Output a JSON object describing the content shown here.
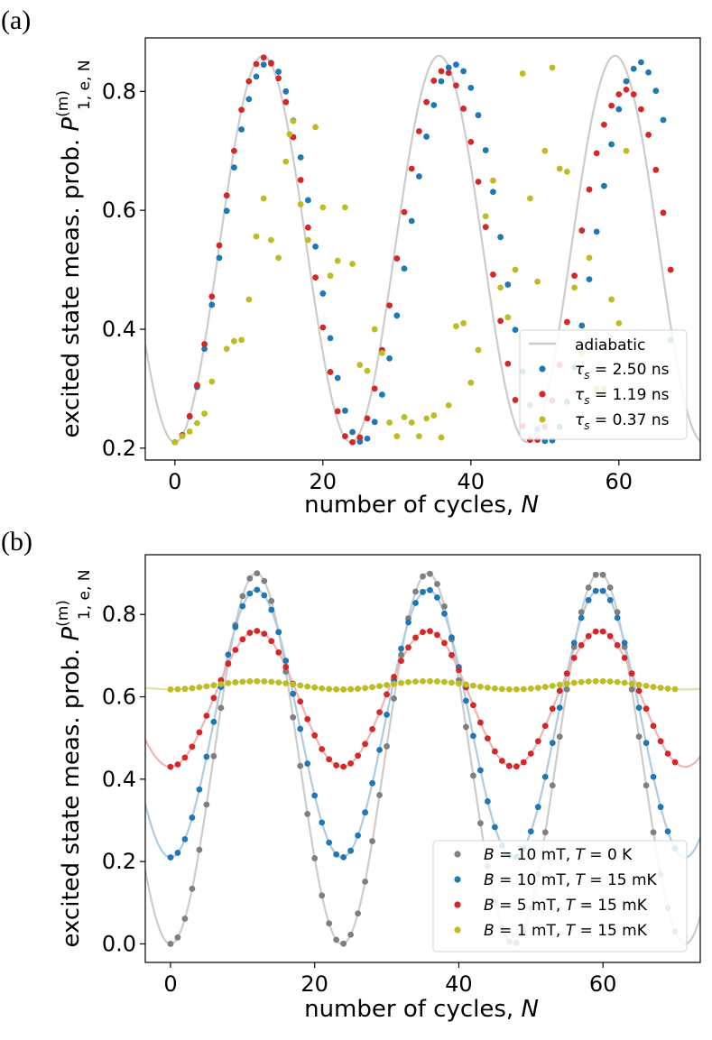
{
  "chart_data": [
    {
      "panel_label": "(a)",
      "type": "scatter",
      "xlabel_text": "number of cycles, ",
      "xlabel_var": "N",
      "ylabel_text": "excited state meas. prob. ",
      "ylabel_var": "P",
      "ylabel_sup": "(m)",
      "ylabel_sub": "1, e, N",
      "xlim": [
        -4,
        71
      ],
      "ylim": [
        0.18,
        0.89
      ],
      "xticks": [
        0,
        20,
        40,
        60
      ],
      "yticks": [
        0.2,
        0.4,
        0.6,
        0.8
      ],
      "xtick_labels": [
        "0",
        "20",
        "40",
        "60"
      ],
      "ytick_labels": [
        "0.2",
        "0.4",
        "0.6",
        "0.8"
      ],
      "legend": {
        "placement": "lower-right",
        "entries": [
          {
            "label": "adiabatic",
            "kind": "line"
          },
          {
            "label_var": "τ",
            "label_sub": "s",
            "label_rest": " = 2.50 ns",
            "kind": "dot"
          },
          {
            "label_var": "τ",
            "label_sub": "s",
            "label_rest": " = 1.19 ns",
            "kind": "dot"
          },
          {
            "label_var": "τ",
            "label_sub": "s",
            "label_rest": " = 0.37 ns",
            "kind": "dot"
          }
        ]
      },
      "curves": [
        {
          "name": "adiabatic",
          "color": "#cccccc",
          "model": "cosine",
          "params": {
            "center": 0.535,
            "amplitude": 0.325,
            "period": 23.8,
            "opacity": 1
          }
        }
      ],
      "series": [
        {
          "name": "tau_s = 2.50 ns",
          "color": "#1f77b4",
          "x": [
            0,
            1,
            2,
            3,
            4,
            5,
            6,
            7,
            8,
            9,
            10,
            11,
            12,
            13,
            14,
            15,
            16,
            17,
            18,
            19,
            20,
            21,
            22,
            23,
            24,
            25,
            26,
            27,
            28,
            29,
            30,
            31,
            32,
            33,
            34,
            35,
            36,
            37,
            38,
            39,
            40,
            41,
            42,
            43,
            44,
            45,
            46,
            47,
            48,
            49,
            50,
            51,
            52,
            53,
            54,
            55,
            56,
            57,
            58,
            59,
            60,
            61,
            62,
            63,
            64,
            65,
            66,
            67
          ],
          "y": [
            0.21,
            0.221,
            0.253,
            0.303,
            0.367,
            0.441,
            0.52,
            0.599,
            0.672,
            0.736,
            0.787,
            0.825,
            0.845,
            0.848,
            0.833,
            0.8,
            0.751,
            0.689,
            0.617,
            0.539,
            0.46,
            0.385,
            0.318,
            0.263,
            0.227,
            0.211,
            0.216,
            0.244,
            0.29,
            0.351,
            0.423,
            0.502,
            0.582,
            0.657,
            0.724,
            0.777,
            0.817,
            0.84,
            0.845,
            0.834,
            0.806,
            0.76,
            0.701,
            0.631,
            0.555,
            0.475,
            0.399,
            0.329,
            0.272,
            0.232,
            0.212,
            0.213,
            0.236,
            0.278,
            0.336,
            0.406,
            0.484,
            0.564,
            0.641,
            0.711,
            0.77,
            0.817,
            0.838,
            0.849,
            0.832,
            0.801,
            0.752,
            0.382
          ]
        },
        {
          "name": "tau_s = 1.19 ns",
          "color": "#d62728",
          "x": [
            0,
            1,
            2,
            3,
            4,
            5,
            6,
            7,
            8,
            9,
            10,
            11,
            12,
            13,
            14,
            15,
            16,
            17,
            18,
            19,
            20,
            21,
            22,
            23,
            24,
            25,
            26,
            27,
            28,
            29,
            30,
            31,
            32,
            33,
            34,
            35,
            36,
            37,
            38,
            39,
            40,
            41,
            42,
            43,
            44,
            45,
            46,
            47,
            48,
            49,
            50,
            51,
            52,
            53,
            54,
            55,
            56,
            57,
            58,
            59,
            60,
            61,
            62,
            63,
            64,
            65,
            66,
            67
          ],
          "y": [
            0.21,
            0.222,
            0.254,
            0.306,
            0.375,
            0.455,
            0.541,
            0.625,
            0.7,
            0.769,
            0.817,
            0.846,
            0.857,
            0.847,
            0.822,
            0.782,
            0.723,
            0.651,
            0.571,
            0.487,
            0.403,
            0.328,
            0.262,
            0.22,
            0.21,
            0.218,
            0.25,
            0.3,
            0.365,
            0.44,
            0.519,
            0.597,
            0.67,
            0.733,
            0.782,
            0.818,
            0.834,
            0.831,
            0.81,
            0.771,
            0.715,
            0.648,
            0.572,
            0.492,
            0.414,
            0.342,
            0.281,
            0.237,
            0.214,
            0.214,
            0.236,
            0.28,
            0.34,
            0.412,
            0.49,
            0.566,
            0.635,
            0.696,
            0.744,
            0.776,
            0.795,
            0.803,
            0.795,
            0.77,
            0.727,
            0.668,
            0.596,
            0.5
          ]
        },
        {
          "name": "tau_s = 0.37 ns",
          "color": "#bcbd22",
          "x": [
            0,
            1,
            2,
            3,
            4,
            5,
            7,
            8,
            9,
            10,
            11,
            12,
            13,
            14,
            15,
            15.5,
            16,
            17,
            18,
            19,
            20,
            21,
            22,
            23,
            24,
            25,
            26,
            27,
            28,
            29,
            30,
            31,
            32,
            33,
            34,
            35,
            36,
            37,
            38,
            39,
            40,
            41,
            42,
            43,
            44,
            45,
            46,
            47,
            48,
            49,
            50,
            51,
            52,
            53,
            54,
            55,
            56,
            57,
            58,
            59,
            60,
            61
          ],
          "y": [
            0.21,
            0.22,
            0.228,
            0.242,
            0.258,
            0.312,
            0.367,
            0.38,
            0.382,
            0.45,
            0.556,
            0.62,
            0.55,
            0.52,
            0.682,
            0.728,
            0.75,
            0.61,
            0.55,
            0.74,
            0.605,
            0.49,
            0.515,
            0.605,
            0.51,
            0.34,
            0.33,
            0.4,
            0.36,
            0.243,
            0.22,
            0.252,
            0.243,
            0.22,
            0.25,
            0.255,
            0.218,
            0.272,
            0.405,
            0.41,
            0.31,
            0.365,
            0.59,
            0.65,
            0.47,
            0.42,
            0.5,
            0.83,
            0.62,
            0.48,
            0.7,
            0.84,
            0.67,
            0.665,
            0.47,
            0.36,
            0.52,
            0.3,
            0.3,
            0.45,
            0.41,
            0.7
          ]
        }
      ]
    },
    {
      "panel_label": "(b)",
      "type": "scatter",
      "xlabel_text": "number of cycles, ",
      "xlabel_var": "N",
      "ylabel_text": "excited state meas. prob. ",
      "ylabel_var": "P",
      "ylabel_sup": "(m)",
      "ylabel_sub": "1, e, N",
      "xlim": [
        -3.5,
        73.5
      ],
      "ylim": [
        -0.045,
        0.945
      ],
      "xticks": [
        0,
        20,
        40,
        60
      ],
      "yticks": [
        0.0,
        0.2,
        0.4,
        0.6,
        0.8
      ],
      "xtick_labels": [
        "0",
        "20",
        "40",
        "60"
      ],
      "ytick_labels": [
        "0.0",
        "0.2",
        "0.4",
        "0.6",
        "0.8"
      ],
      "legend": {
        "placement": "lower-right",
        "entries": [
          {
            "parts": [
              "B",
              " = 10 mT, ",
              "T",
              " = 0 K"
            ],
            "kind": "dot"
          },
          {
            "parts": [
              "B",
              " = 10 mT, ",
              "T",
              " = 15 mK"
            ],
            "kind": "dot"
          },
          {
            "parts": [
              "B",
              " = 5 mT, ",
              "T",
              " = 15 mK"
            ],
            "kind": "dot"
          },
          {
            "parts": [
              "B",
              " = 1 mT, ",
              "T",
              " = 15 mK"
            ],
            "kind": "dot"
          }
        ]
      },
      "curves": [
        {
          "name": "B = 10 mT, T = 0 K",
          "color": "#cccccc",
          "model": "cosine",
          "params": {
            "center": 0.45,
            "amplitude": 0.45,
            "period": 23.8,
            "opacity": 1
          }
        },
        {
          "name": "B = 10 mT, T = 15 mK",
          "color": "#aecbe3",
          "model": "cosine",
          "params": {
            "center": 0.535,
            "amplitude": 0.325,
            "period": 23.8,
            "opacity": 1
          }
        },
        {
          "name": "B = 5 mT, T = 15 mK",
          "color": "#f2b3b3",
          "model": "cosine",
          "params": {
            "center": 0.595,
            "amplitude": 0.165,
            "period": 23.8,
            "opacity": 1
          }
        },
        {
          "name": "B = 1 mT, T = 15 mK",
          "color": "#e1e1a8",
          "model": "cosine",
          "params": {
            "center": 0.628,
            "amplitude": 0.01,
            "period": 23.8,
            "opacity": 1
          }
        }
      ],
      "series": [
        {
          "name": "B = 10 mT, T = 0 K",
          "color": "#7f7f7f",
          "model": "cosine",
          "params": {
            "center": 0.45,
            "amplitude": 0.45,
            "period": 23.8,
            "x_start": 0,
            "x_end": 70,
            "x_step": 1
          }
        },
        {
          "name": "B = 10 mT, T = 15 mK",
          "color": "#1f77b4",
          "model": "cosine",
          "params": {
            "center": 0.535,
            "amplitude": 0.325,
            "period": 23.8,
            "x_start": 0,
            "x_end": 70,
            "x_step": 1
          }
        },
        {
          "name": "B = 5 mT, T = 15 mK",
          "color": "#d62728",
          "model": "cosine",
          "params": {
            "center": 0.595,
            "amplitude": 0.165,
            "period": 23.8,
            "x_start": 0,
            "x_end": 70,
            "x_step": 1
          }
        },
        {
          "name": "B = 1 mT, T = 15 mK",
          "color": "#bcbd22",
          "model": "cosine",
          "params": {
            "center": 0.628,
            "amplitude": 0.01,
            "period": 23.8,
            "x_start": 0,
            "x_end": 70,
            "x_step": 1
          }
        }
      ]
    }
  ]
}
